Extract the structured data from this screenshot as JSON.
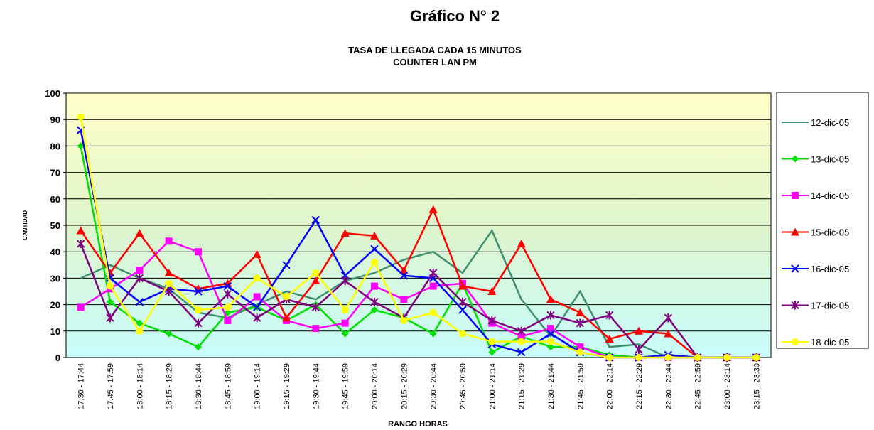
{
  "chart_data": {
    "type": "line",
    "title": "Gráfico N° 2",
    "subtitle_lines": [
      "TASA DE LLEGADA CADA 15 MINUTOS",
      "COUNTER LAN PM"
    ],
    "x_label": "RANGO HORAS",
    "y_label": "CANTIDAD",
    "categories": [
      "17:30 - 17:44",
      "17:45 - 17:59",
      "18:00 - 18:14",
      "18:15 - 18:29",
      "18:30 - 18:44",
      "18:45 - 18:59",
      "19:00 - 19:14",
      "19:15 - 19:29",
      "19:30 - 19:44",
      "19:45 - 19:59",
      "20:00 - 20:14",
      "20:15 - 20:29",
      "20:30 - 20:44",
      "20:45 - 20:59",
      "21:00 - 21:14",
      "21:15 - 21:29",
      "21:30 - 21:44",
      "21:45 - 21:59",
      "22:00 - 22:14",
      "22:15 - 22:29",
      "22:30 - 22:44",
      "22:45 - 22:59",
      "23:00 - 23:14",
      "23:15 - 23:30"
    ],
    "series": [
      {
        "name": "12-dic-05",
        "color": "#3f8f6f",
        "marker": "none",
        "values": [
          30,
          35,
          30,
          26,
          17,
          15,
          20,
          25,
          22,
          29,
          32,
          37,
          40,
          32,
          48,
          22,
          8,
          25,
          4,
          5,
          0,
          0,
          0,
          0
        ]
      },
      {
        "name": "13-dic-05",
        "color": "#00e000",
        "marker": "diamond",
        "values": [
          80,
          21,
          13,
          9,
          4,
          17,
          19,
          14,
          20,
          9,
          18,
          15,
          9,
          28,
          2,
          8,
          4,
          4,
          1,
          0,
          0,
          0,
          0,
          0
        ]
      },
      {
        "name": "14-dic-05",
        "color": "#ff00ff",
        "marker": "square",
        "values": [
          19,
          26,
          33,
          44,
          40,
          14,
          23,
          14,
          11,
          13,
          27,
          22,
          27,
          28,
          13,
          8,
          11,
          4,
          0,
          0,
          0,
          0,
          0,
          0
        ]
      },
      {
        "name": "15-dic-05",
        "color": "#ff0000",
        "marker": "triangle",
        "values": [
          48,
          32,
          47,
          32,
          26,
          28,
          39,
          15,
          29,
          47,
          46,
          33,
          56,
          27,
          25,
          43,
          22,
          17,
          7,
          10,
          9,
          0,
          0,
          0
        ]
      },
      {
        "name": "16-dic-05",
        "color": "#0000ff",
        "marker": "x",
        "values": [
          86,
          30,
          21,
          26,
          25,
          27,
          19,
          35,
          52,
          31,
          41,
          31,
          30,
          18,
          5,
          2,
          9,
          2,
          0,
          0,
          1,
          0,
          0,
          0
        ]
      },
      {
        "name": "17-dic-05",
        "color": "#800080",
        "marker": "star",
        "values": [
          43,
          15,
          30,
          25,
          13,
          24,
          15,
          22,
          19,
          29,
          21,
          15,
          32,
          21,
          14,
          10,
          16,
          13,
          16,
          3,
          15,
          0,
          0,
          0
        ]
      },
      {
        "name": "18-dic-05",
        "color": "#ffff00",
        "marker": "circle",
        "values": [
          91,
          27,
          10,
          28,
          18,
          19,
          30,
          23,
          32,
          18,
          36,
          14,
          17,
          9,
          6,
          6,
          6,
          2,
          0,
          0,
          0,
          0,
          0,
          0
        ]
      }
    ],
    "ylim": [
      0,
      100
    ],
    "yticks": [
      0,
      10,
      20,
      30,
      40,
      50,
      60,
      70,
      80,
      90,
      100
    ],
    "grid": true
  }
}
